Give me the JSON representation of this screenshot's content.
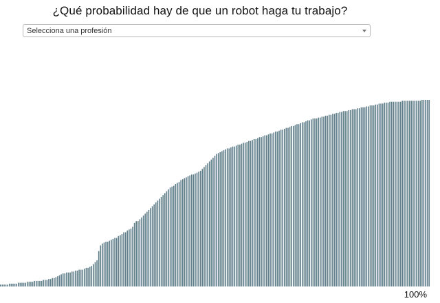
{
  "header": {
    "title": "¿Qué probabilidad hay de que un robot haga tu trabajo?"
  },
  "selector": {
    "value": "Selecciona una profesión",
    "icon": "chevron-down-icon"
  },
  "chart_data": {
    "type": "bar",
    "title": "",
    "xlabel": "",
    "ylabel": "",
    "ylim": [
      0,
      100
    ],
    "bar_color": "#5e7d89",
    "x_end_label": "100%",
    "values": [
      1,
      1,
      1,
      1,
      1,
      1.5,
      1.5,
      1.5,
      1.5,
      1.5,
      2,
      2,
      2,
      2,
      2,
      2.5,
      2.5,
      2.5,
      2.5,
      3,
      3,
      3,
      3,
      3,
      3.5,
      3.5,
      3.5,
      4,
      4,
      4.5,
      4.5,
      5,
      5.5,
      6,
      6.5,
      7,
      7,
      7.5,
      7.5,
      7.5,
      8,
      8,
      8.5,
      8.5,
      9,
      9,
      9,
      9.5,
      10,
      10,
      10.5,
      11,
      12,
      13,
      14,
      19,
      22,
      23,
      23.5,
      24,
      24,
      24.5,
      25,
      25.5,
      26,
      26,
      27,
      27.5,
      28,
      29,
      29,
      30,
      30.5,
      31,
      32,
      34,
      35,
      35,
      36,
      37,
      38,
      39,
      40,
      41,
      42,
      43,
      44,
      45,
      46,
      47,
      48,
      49,
      50,
      51,
      52,
      53,
      53.5,
      54,
      55,
      55.5,
      56,
      57,
      57.5,
      58,
      58.5,
      59,
      59.5,
      60,
      60,
      60.5,
      61,
      61.5,
      62,
      63,
      64,
      65,
      66,
      67,
      68,
      69,
      70,
      71,
      71.5,
      72,
      72.5,
      73,
      73.5,
      74,
      74,
      74.5,
      75,
      75,
      75.5,
      76,
      76,
      76.5,
      77,
      77,
      77.5,
      78,
      78,
      78.5,
      79,
      79,
      79.5,
      80,
      80,
      80.5,
      81,
      81,
      81.5,
      82,
      82,
      82.5,
      83,
      83,
      83.5,
      84,
      84,
      84.5,
      85,
      85,
      85.5,
      86,
      86,
      86.5,
      87,
      87,
      87.5,
      88,
      88,
      88.5,
      89,
      89,
      89.5,
      90,
      90,
      90,
      90.5,
      90.5,
      91,
      91,
      91.5,
      91.5,
      92,
      92,
      92.5,
      92.5,
      93,
      93,
      93.5,
      93.5,
      94,
      94,
      94,
      94.5,
      94.5,
      95,
      95,
      95,
      95.5,
      95.5,
      96,
      96,
      96,
      96.5,
      96.5,
      97,
      97,
      97,
      97.5,
      97.5,
      98,
      98,
      98,
      98.5,
      98.5,
      98.5,
      99,
      99,
      99,
      99,
      99,
      99,
      99,
      99.5,
      99.5,
      99.5,
      99.5,
      99.5,
      99.5,
      99.5,
      99.5,
      99.5,
      99.5,
      99.5,
      100,
      100,
      100,
      100,
      100
    ]
  }
}
